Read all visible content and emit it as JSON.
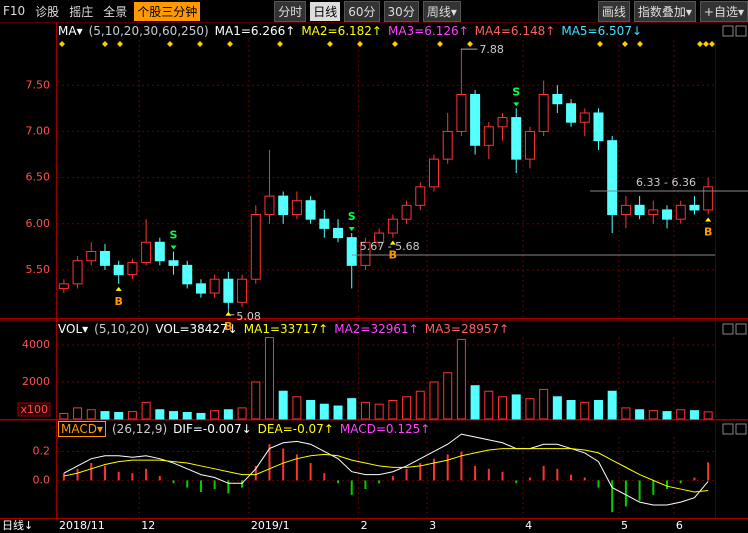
{
  "toolbar": {
    "left": [
      "F10",
      "诊股",
      "摇庄",
      "全景"
    ],
    "highlight": "个股三分钟",
    "periods": [
      "分时",
      "日线",
      "60分",
      "30分",
      "周线▾"
    ],
    "right": [
      "画线",
      "指数叠加▾",
      "+自选▾"
    ]
  },
  "chart_data": [
    {
      "type": "candlestick",
      "header": [
        {
          "text": "MA▾",
          "color": "#ffffff"
        },
        {
          "text": "(5,10,20,30,60,250)",
          "color": "#cccccc"
        },
        {
          "text": "MA1=6.266↑",
          "color": "#ffffff"
        },
        {
          "text": "MA2=6.182↑",
          "color": "#ffff00"
        },
        {
          "text": "MA3=6.126↑",
          "color": "#ff40ff"
        },
        {
          "text": "MA4=6.148↑",
          "color": "#ff6060"
        },
        {
          "text": "MA5=6.507↓",
          "color": "#40e0ff"
        }
      ],
      "categories": [
        "2018/11",
        null,
        null,
        null,
        null,
        null,
        "12",
        null,
        null,
        null,
        null,
        null,
        null,
        null,
        "2019/1",
        null,
        null,
        null,
        null,
        null,
        null,
        null,
        "2",
        null,
        null,
        null,
        null,
        "3",
        null,
        null,
        null,
        null,
        null,
        null,
        "4",
        null,
        null,
        null,
        null,
        null,
        null,
        "5",
        null,
        null,
        null,
        "6",
        null,
        null
      ],
      "candles": {
        "open": [
          5.3,
          5.35,
          5.6,
          5.7,
          5.55,
          5.45,
          5.58,
          5.8,
          5.6,
          5.55,
          5.35,
          5.25,
          5.4,
          5.15,
          5.4,
          6.1,
          6.3,
          6.1,
          6.25,
          6.05,
          5.95,
          5.85,
          5.55,
          5.8,
          5.9,
          6.05,
          6.2,
          6.4,
          6.7,
          7.0,
          7.4,
          6.85,
          7.05,
          7.15,
          6.7,
          7.0,
          7.4,
          7.3,
          7.1,
          7.2,
          6.9,
          6.1,
          6.2,
          6.1,
          6.15,
          6.05,
          6.2,
          6.15
        ],
        "high": [
          5.4,
          5.65,
          5.8,
          5.78,
          5.6,
          5.62,
          6.05,
          5.85,
          5.7,
          5.6,
          5.4,
          5.45,
          5.48,
          5.45,
          6.2,
          6.8,
          6.35,
          6.35,
          6.3,
          6.15,
          6.05,
          5.9,
          5.85,
          5.95,
          6.1,
          6.25,
          6.45,
          6.75,
          7.2,
          7.88,
          7.45,
          7.1,
          7.2,
          7.25,
          7.05,
          7.55,
          7.5,
          7.35,
          7.25,
          7.25,
          6.95,
          6.3,
          6.3,
          6.25,
          6.2,
          6.25,
          6.3,
          6.5
        ],
        "low": [
          5.25,
          5.3,
          5.55,
          5.5,
          5.35,
          5.4,
          5.55,
          5.55,
          5.45,
          5.3,
          5.2,
          5.2,
          5.08,
          5.1,
          5.35,
          6.0,
          6.0,
          6.05,
          6.0,
          5.85,
          5.8,
          5.3,
          5.5,
          5.75,
          5.85,
          6.0,
          6.15,
          6.35,
          6.65,
          6.95,
          6.75,
          6.7,
          6.9,
          6.55,
          6.6,
          6.95,
          7.2,
          7.05,
          6.95,
          6.8,
          5.9,
          5.95,
          6.05,
          6.0,
          5.95,
          6.0,
          6.1,
          6.1
        ],
        "close": [
          5.35,
          5.6,
          5.7,
          5.55,
          5.45,
          5.58,
          5.8,
          5.6,
          5.55,
          5.35,
          5.25,
          5.4,
          5.15,
          5.4,
          6.1,
          6.3,
          6.1,
          6.25,
          6.05,
          5.95,
          5.85,
          5.55,
          5.8,
          5.9,
          6.05,
          6.2,
          6.4,
          6.7,
          7.0,
          7.4,
          6.85,
          7.05,
          7.15,
          6.7,
          7.0,
          7.4,
          7.3,
          7.1,
          7.2,
          6.9,
          6.1,
          6.2,
          6.1,
          6.15,
          6.05,
          6.2,
          6.15,
          6.4
        ]
      },
      "up_color": "#ff3232",
      "down_color": "#54ffff",
      "ylim": [
        4.98,
        7.99
      ],
      "yticks": [
        {
          "value": 5.5,
          "label": "5.50"
        },
        {
          "value": 6,
          "label": "6.00"
        },
        {
          "value": 6.5,
          "label": "6.50"
        },
        {
          "value": 7,
          "label": "7.00"
        },
        {
          "value": 7.5,
          "label": "7.50"
        }
      ],
      "grid": true,
      "annotations": [
        "7.88",
        "5.08",
        "5.67 - 5.68",
        "6.33 - 6.36"
      ],
      "signals": [
        "B",
        "S",
        "B",
        "S",
        "B",
        "S",
        "B"
      ]
    },
    {
      "type": "bar",
      "header": [
        {
          "text": "VOL▾",
          "color": "#ffffff"
        },
        {
          "text": "(5,10,20)",
          "color": "#cccccc"
        },
        {
          "text": "VOL=38427↓",
          "color": "#ffffff"
        },
        {
          "text": "MA1=33717↑",
          "color": "#ffff00"
        },
        {
          "text": "MA2=32961↑",
          "color": "#ff40ff"
        },
        {
          "text": "MA3=28957↑",
          "color": "#ff6060"
        }
      ],
      "values": [
        300,
        600,
        500,
        400,
        350,
        400,
        900,
        500,
        400,
        350,
        300,
        450,
        500,
        600,
        2000,
        4400,
        1500,
        1200,
        1000,
        800,
        700,
        1100,
        900,
        800,
        1000,
        1200,
        1500,
        2000,
        2500,
        4300,
        1800,
        1500,
        1200,
        1300,
        1100,
        1600,
        1200,
        1000,
        900,
        1000,
        1500,
        600,
        500,
        450,
        400,
        500,
        450,
        384
      ],
      "ylim": [
        0,
        4430
      ],
      "yticks": [
        4000,
        2000
      ],
      "unit_label": "x100"
    },
    {
      "type": "macd",
      "header": [
        {
          "text": "MACD▾",
          "color": "#ff9900"
        },
        {
          "text": "(26,12,9)",
          "color": "#cccccc"
        },
        {
          "text": "DIF=-0.007↓",
          "color": "#ffffff"
        },
        {
          "text": "DEA=-0.07↑",
          "color": "#ffff00"
        },
        {
          "text": "MACD=0.125↑",
          "color": "#ff40ff"
        }
      ],
      "values": [
        0.05,
        0.08,
        0.12,
        0.1,
        0.06,
        0.05,
        0.08,
        0.03,
        -0.02,
        -0.05,
        -0.08,
        -0.06,
        -0.09,
        -0.05,
        0.1,
        0.25,
        0.22,
        0.18,
        0.12,
        0.05,
        -0.02,
        -0.1,
        -0.06,
        -0.02,
        0.03,
        0.08,
        0.12,
        0.15,
        0.18,
        0.2,
        0.1,
        0.08,
        0.06,
        -0.02,
        0.02,
        0.1,
        0.08,
        0.04,
        0.02,
        -0.05,
        -0.22,
        -0.18,
        -0.14,
        -0.1,
        -0.06,
        -0.02,
        0.02,
        0.125
      ],
      "series": [
        {
          "color": "#ffffff",
          "values": [
            0.05,
            0.1,
            0.15,
            0.17,
            0.17,
            0.16,
            0.17,
            0.15,
            0.12,
            0.08,
            0.04,
            0.02,
            -0.02,
            -0.02,
            0.08,
            0.22,
            0.26,
            0.27,
            0.25,
            0.2,
            0.15,
            0.06,
            0.04,
            0.04,
            0.06,
            0.1,
            0.15,
            0.2,
            0.25,
            0.32,
            0.3,
            0.28,
            0.26,
            0.22,
            0.22,
            0.25,
            0.25,
            0.22,
            0.19,
            0.13,
            -0.05,
            -0.1,
            -0.15,
            -0.17,
            -0.17,
            -0.15,
            -0.12,
            -0.007
          ]
        },
        {
          "color": "#ffff00",
          "values": [
            0.03,
            0.05,
            0.08,
            0.11,
            0.13,
            0.14,
            0.14,
            0.14,
            0.13,
            0.12,
            0.1,
            0.08,
            0.06,
            0.04,
            0.04,
            0.08,
            0.12,
            0.15,
            0.17,
            0.18,
            0.17,
            0.14,
            0.12,
            0.1,
            0.09,
            0.09,
            0.1,
            0.12,
            0.14,
            0.17,
            0.19,
            0.21,
            0.22,
            0.22,
            0.22,
            0.22,
            0.22,
            0.22,
            0.21,
            0.19,
            0.14,
            0.09,
            0.04,
            0.0,
            -0.04,
            -0.06,
            -0.08,
            -0.07
          ]
        }
      ],
      "ylim": [
        -0.26,
        0.3
      ],
      "yticks": [
        0.2,
        {
          "value": 0,
          "label": "0.0"
        }
      ],
      "up_color": "#ff3232",
      "down_color": "#00d000"
    }
  ],
  "footer": {
    "period": "日线↓"
  }
}
